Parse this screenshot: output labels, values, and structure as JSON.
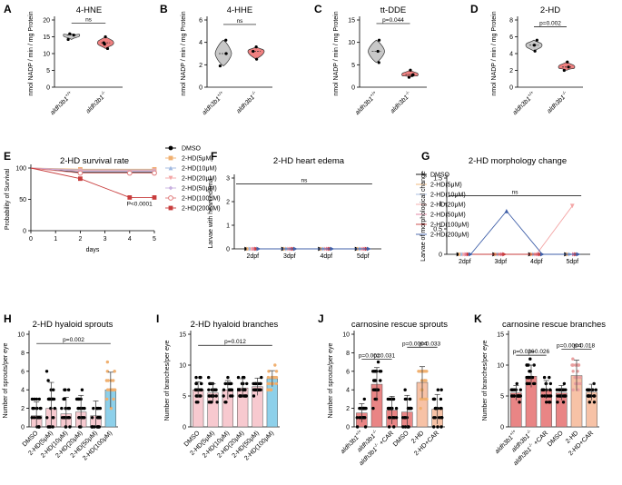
{
  "chart_data": [
    {
      "id": "A",
      "type": "violin",
      "title": "4-HNE",
      "ylabel": "nmol NADP / min / mg Protein",
      "ylim": [
        0,
        20
      ],
      "yticks": [
        0,
        5,
        10,
        15,
        20
      ],
      "categories": [
        "aldh3b1+/+",
        "aldh3b1-/-"
      ],
      "colors": [
        "#c8c8c8",
        "#f08080"
      ],
      "series": [
        {
          "points": [
            15.5,
            14.2,
            15.9
          ]
        },
        {
          "points": [
            15.0,
            13.2,
            11.5,
            12.8
          ]
        }
      ],
      "annotations": [
        {
          "text": "ns",
          "from": 0,
          "to": 1,
          "y": 19
        }
      ]
    },
    {
      "id": "B",
      "type": "violin",
      "title": "4-HHE",
      "ylabel": "nmol NADP / min / mg Protein",
      "ylim": [
        0,
        6
      ],
      "yticks": [
        0,
        2,
        4,
        6
      ],
      "categories": [
        "aldh3b1+/+",
        "aldh3b1-/-"
      ],
      "colors": [
        "#c8c8c8",
        "#f08080"
      ],
      "series": [
        {
          "points": [
            4.2,
            3.0,
            1.9
          ]
        },
        {
          "points": [
            3.6,
            3.2,
            2.5
          ]
        }
      ],
      "annotations": [
        {
          "text": "ns",
          "from": 0,
          "to": 1,
          "y": 5.6
        }
      ]
    },
    {
      "id": "C",
      "type": "violin",
      "title": "tt-DDE",
      "ylabel": "nmol NADP / min / mg Protein",
      "ylim": [
        0,
        15
      ],
      "yticks": [
        0,
        5,
        10,
        15
      ],
      "categories": [
        "aldh3b1+/+",
        "aldh3b1-/-"
      ],
      "colors": [
        "#c8c8c8",
        "#f08080"
      ],
      "series": [
        {
          "points": [
            10.5,
            8.0,
            5.5
          ]
        },
        {
          "points": [
            3.8,
            2.8,
            2.2,
            2.6
          ]
        }
      ],
      "annotations": [
        {
          "text": "p=0.044",
          "from": 0,
          "to": 1,
          "y": 14.2
        }
      ]
    },
    {
      "id": "D",
      "type": "violin",
      "title": "2-HD",
      "ylabel": "nmol NADP / min / mg Protein",
      "ylim": [
        0,
        8
      ],
      "yticks": [
        0,
        2,
        4,
        6,
        8
      ],
      "categories": [
        "aldh3b1+/+",
        "aldh3b1-/-"
      ],
      "colors": [
        "#c8c8c8",
        "#f08080"
      ],
      "series": [
        {
          "points": [
            5.6,
            5.0,
            4.3
          ]
        },
        {
          "points": [
            3.0,
            2.4,
            2.0
          ]
        }
      ],
      "annotations": [
        {
          "text": "p=0.002",
          "from": 0,
          "to": 1,
          "y": 7.2
        }
      ]
    },
    {
      "id": "E",
      "type": "line",
      "title": "2-HD survival rate",
      "xlabel": "days",
      "ylabel": "Probability of Survival",
      "xlim": [
        0,
        5
      ],
      "xticks": [
        0,
        1,
        2,
        3,
        4,
        5
      ],
      "ylim": [
        0,
        100
      ],
      "yticks": [
        0,
        50,
        100
      ],
      "series": [
        {
          "name": "DMSO",
          "color": "#000000",
          "marker": "circle",
          "x": [
            0,
            2,
            5
          ],
          "y": [
            100,
            93,
            93
          ]
        },
        {
          "name": "2-HD(5μM)",
          "color": "#f0b070",
          "marker": "square",
          "x": [
            0,
            2,
            5
          ],
          "y": [
            100,
            98,
            98
          ]
        },
        {
          "name": "2-HD(10μM)",
          "color": "#9fb8e0",
          "marker": "triangle",
          "x": [
            0,
            2,
            5
          ],
          "y": [
            100,
            97,
            97
          ]
        },
        {
          "name": "2-HD(20μM)",
          "color": "#f4a6a6",
          "marker": "triangle-down",
          "x": [
            0,
            2,
            5
          ],
          "y": [
            100,
            96,
            96
          ]
        },
        {
          "name": "2-HD(50μM)",
          "color": "#c9b0e0",
          "marker": "diamond",
          "x": [
            0,
            2,
            5
          ],
          "y": [
            100,
            95,
            95
          ]
        },
        {
          "name": "2-HD(100μM)",
          "color": "#e07a7a",
          "marker": "open-circle",
          "x": [
            0,
            2,
            4,
            5
          ],
          "y": [
            100,
            92,
            92,
            92
          ]
        },
        {
          "name": "2-HD(200μM)",
          "color": "#c83c3c",
          "marker": "filled-square",
          "x": [
            0,
            2,
            4,
            5
          ],
          "y": [
            100,
            83,
            53,
            53
          ]
        }
      ],
      "annotations": [
        {
          "text": "P<0.0001",
          "x": 4.4,
          "y": 40
        }
      ]
    },
    {
      "id": "F",
      "type": "line",
      "title": "2-HD heart edema",
      "ylabel": "Larvae with heart edema",
      "categories": [
        "2dpf",
        "3dpf",
        "4dpf",
        "5dpf"
      ],
      "ylim": [
        0,
        3
      ],
      "yticks": [
        0,
        1,
        2,
        3
      ],
      "series": [
        {
          "name": "DMSO",
          "color": "#000000",
          "values": [
            0,
            0,
            0,
            0
          ]
        },
        {
          "name": "2-HD(5μM)",
          "color": "#f0b070",
          "values": [
            0,
            0,
            0,
            0
          ]
        },
        {
          "name": "2-HD(10μM)",
          "color": "#9fb8e0",
          "values": [
            0,
            0,
            0,
            0
          ]
        },
        {
          "name": "2-HD(20μM)",
          "color": "#f4a6a6",
          "values": [
            0,
            0,
            0,
            0
          ]
        },
        {
          "name": "2-HD(50μM)",
          "color": "#e07a9a",
          "values": [
            0,
            0,
            0,
            0
          ]
        },
        {
          "name": "2-HD(100μM)",
          "color": "#c83c3c",
          "values": [
            0,
            0,
            0,
            0
          ]
        },
        {
          "name": "2-HD(200μM)",
          "color": "#3f5fa8",
          "values": [
            0,
            0,
            0,
            0
          ]
        }
      ],
      "annotations": [
        {
          "text": "ns",
          "from": 0,
          "to": 3,
          "y": 2.75
        }
      ]
    },
    {
      "id": "G",
      "type": "line",
      "title": "2-HD morphology change",
      "ylabel": "Larvae of morphological change",
      "categories": [
        "2dpf",
        "3dpf",
        "4dpf",
        "5dpf"
      ],
      "ylim": [
        0,
        1.5
      ],
      "yticks": [
        0,
        0.5,
        1,
        1.5
      ],
      "series": [
        {
          "name": "DMSO",
          "color": "#000000",
          "values": [
            0,
            0,
            0,
            0
          ]
        },
        {
          "name": "2-HD(5μM)",
          "color": "#f0b070",
          "values": [
            0,
            0,
            0,
            0
          ]
        },
        {
          "name": "2-HD(10μM)",
          "color": "#9fb8e0",
          "values": [
            0,
            0,
            0,
            0
          ]
        },
        {
          "name": "2-HD(20μM)",
          "color": "#f4a6a6",
          "values": [
            0,
            0,
            0,
            0.95
          ]
        },
        {
          "name": "2-HD(50μM)",
          "color": "#e07a9a",
          "values": [
            0,
            0,
            0,
            0
          ]
        },
        {
          "name": "2-HD(100μM)",
          "color": "#c83c3c",
          "values": [
            0,
            0,
            0,
            0
          ]
        },
        {
          "name": "2-HD(200μM)",
          "color": "#3f5fa8",
          "values": [
            0,
            0.85,
            0,
            0
          ]
        }
      ],
      "annotations": [
        {
          "text": "ns",
          "from": 0,
          "to": 3,
          "y": 1.15
        }
      ]
    },
    {
      "id": "H",
      "type": "bar",
      "title": "2-HD hyaloid sprouts",
      "ylabel": "Number of sprouts/per eye",
      "ylim": [
        0,
        10
      ],
      "yticks": [
        0,
        2,
        4,
        6,
        8,
        10
      ],
      "categories": [
        "DMSO",
        "2-HD(5μM)",
        "2-HD(10μM)",
        "2-HD(20μM)",
        "2-HD(50μM)",
        "2-HD(100μM)"
      ],
      "colors": [
        "#f7c9cf",
        "#f7c9cf",
        "#f7c9cf",
        "#f7c9cf",
        "#f7c9cf",
        "#8dd0ea"
      ],
      "dot_colors": [
        "#000000",
        "#000000",
        "#000000",
        "#000000",
        "#000000",
        "#f0b070"
      ],
      "values": [
        1.2,
        2.0,
        1.4,
        1.6,
        1.2,
        4.0
      ],
      "errors": [
        1.5,
        2.8,
        1.8,
        1.8,
        1.6,
        1.9
      ],
      "annotations": [
        {
          "text": "p=0.002",
          "from": 0,
          "to": 5,
          "y": 9.0
        }
      ]
    },
    {
      "id": "I",
      "type": "bar",
      "title": "2-HD hyaloid branches",
      "ylabel": "Number of branches/per eye",
      "ylim": [
        0,
        15
      ],
      "yticks": [
        0,
        5,
        10,
        15
      ],
      "categories": [
        "DMSO",
        "2-HD(5μM)",
        "2-HD(10μM)",
        "2-HD(20μM)",
        "2-HD(50μM)",
        "2-HD(100μM)"
      ],
      "colors": [
        "#f7c9cf",
        "#f7c9cf",
        "#f7c9cf",
        "#f7c9cf",
        "#f7c9cf",
        "#8dd0ea"
      ],
      "dot_colors": [
        "#000000",
        "#000000",
        "#000000",
        "#000000",
        "#000000",
        "#f0b070"
      ],
      "values": [
        6.0,
        5.5,
        6.0,
        6.3,
        6.5,
        7.8
      ],
      "errors": [
        1.3,
        1.5,
        1.5,
        1.5,
        1.4,
        1.3
      ],
      "annotations": [
        {
          "text": "p=0.012",
          "from": 0,
          "to": 5,
          "y": 13.2
        }
      ]
    },
    {
      "id": "J",
      "type": "bar",
      "title": "carnosine rescue sprouts",
      "ylabel": "Number of sprouts/per eye",
      "ylim": [
        0,
        10
      ],
      "yticks": [
        0,
        2,
        4,
        6,
        8,
        10
      ],
      "categories": [
        "aldh3b1+/+",
        "aldh3b1-/-",
        "aldh3b1-/- +CAR",
        "DMSO",
        "2-HD",
        "2-HD+CAR"
      ],
      "colors": [
        "#e98585",
        "#e98585",
        "#e98585",
        "#e98585",
        "#f7c2a6",
        "#f7c2a6"
      ],
      "dot_colors": [
        "#000000",
        "#000000",
        "#000000",
        "#000000",
        "#f0b070",
        "#000000"
      ],
      "values": [
        1.5,
        4.6,
        1.8,
        1.6,
        4.8,
        1.9
      ],
      "errors": [
        1.0,
        1.8,
        1.5,
        1.8,
        1.7,
        1.6
      ],
      "annotations": [
        {
          "text": "p=0.002",
          "from": 0,
          "to": 1,
          "y": 7.3
        },
        {
          "text": "p=0.031",
          "from": 1,
          "to": 2,
          "y": 7.3
        },
        {
          "text": "p=0.0004",
          "from": 3,
          "to": 4,
          "y": 8.6
        },
        {
          "text": "p=0.033",
          "from": 4,
          "to": 5,
          "y": 8.6
        }
      ]
    },
    {
      "id": "K",
      "type": "bar",
      "title": "carnosine rescue  branches",
      "ylabel": "Number of branches/per eye",
      "ylim": [
        0,
        15
      ],
      "yticks": [
        0,
        5,
        10,
        15
      ],
      "categories": [
        "aldh3b1+/+",
        "aldh3b1-/-",
        "aldh3b1-/- +CAR",
        "DMSO",
        "2-HD",
        "2-HD+CAR"
      ],
      "colors": [
        "#e98585",
        "#e98585",
        "#e98585",
        "#e98585",
        "#f7c2a6",
        "#f7c2a6"
      ],
      "dot_colors": [
        "#000000",
        "#000000",
        "#000000",
        "#000000",
        "#e9a0a0",
        "#000000"
      ],
      "values": [
        5.5,
        8.2,
        6.0,
        5.5,
        8.3,
        5.6
      ],
      "errors": [
        1.2,
        1.8,
        1.5,
        1.2,
        2.5,
        1.3
      ],
      "annotations": [
        {
          "text": "p=0.026",
          "from": 0,
          "to": 1,
          "y": 11.6
        },
        {
          "text": "p=0.026",
          "from": 1,
          "to": 2,
          "y": 11.6
        },
        {
          "text": "p=0.0004",
          "from": 3,
          "to": 4,
          "y": 12.6
        },
        {
          "text": "p=0.018",
          "from": 4,
          "to": 5,
          "y": 12.6
        }
      ]
    }
  ]
}
